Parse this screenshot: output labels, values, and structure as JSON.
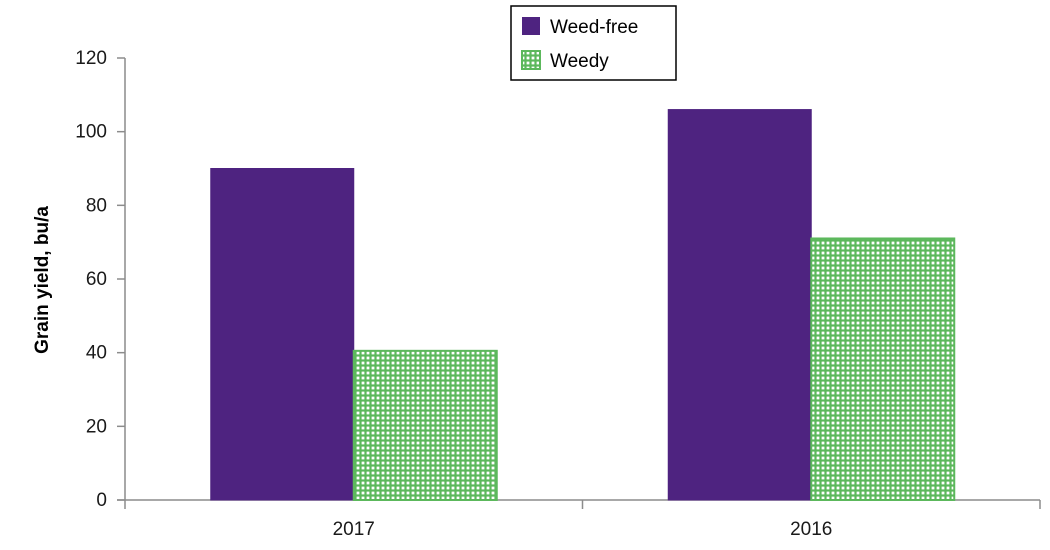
{
  "chart_data": {
    "type": "bar",
    "categories": [
      "2017",
      "2016"
    ],
    "series": [
      {
        "name": "Weed-free",
        "values": [
          90,
          106
        ]
      },
      {
        "name": "Weedy",
        "values": [
          40.5,
          71
        ]
      }
    ],
    "title": "",
    "xlabel": "",
    "ylabel": "Grain yield, bu/a",
    "ylim": [
      0,
      120
    ],
    "yticks": [
      "0",
      "20",
      "40",
      "60",
      "80",
      "100",
      "120"
    ],
    "grid": false,
    "legend_position": "top-center",
    "colors": {
      "weed_free": "#4e2380",
      "weedy": "#5cb85c",
      "weedy_background": "#ffffff",
      "axis": "#8c8c8c",
      "text": "#1a1a1a"
    }
  }
}
